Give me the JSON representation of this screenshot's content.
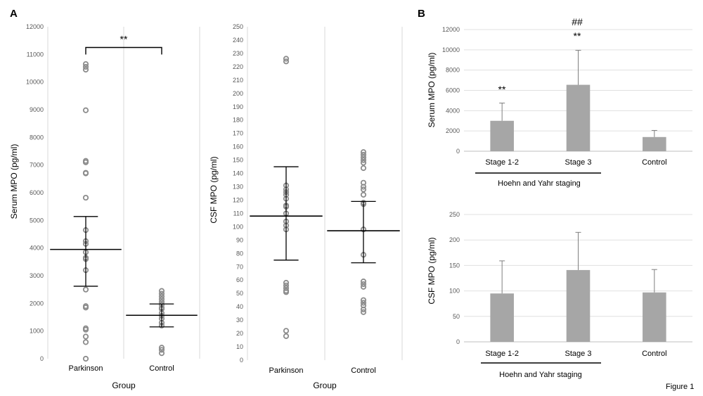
{
  "panel_labels": [
    "A",
    "B"
  ],
  "figure_caption": "Figure 1",
  "chart_data": [
    {
      "id": "serum-scatter",
      "type": "scatter",
      "ylabel": "Serum MPO (pg/ml)",
      "xlabel": "Group",
      "categories": [
        "Parkinson",
        "Control"
      ],
      "ylim": [
        0,
        12000
      ],
      "yticks": [
        0,
        1000,
        2000,
        3000,
        4000,
        5000,
        6000,
        7000,
        8000,
        9000,
        10000,
        11000,
        12000
      ],
      "grid": "vertical",
      "series": [
        {
          "category": "Parkinson",
          "values": [
            10650,
            10550,
            10450,
            8980,
            7150,
            7100,
            6720,
            6700,
            5820,
            4650,
            4250,
            4150,
            3850,
            3650,
            3600,
            3200,
            2500,
            1900,
            1850,
            1100,
            1050,
            800,
            600,
            0
          ],
          "mean": 3950,
          "sd_low": 2620,
          "sd_high": 5140
        },
        {
          "category": "Control",
          "values": [
            2450,
            2350,
            2250,
            2150,
            2050,
            1950,
            1850,
            1800,
            1650,
            1550,
            1450,
            1300,
            1200,
            400,
            320,
            200
          ],
          "mean": 1570,
          "sd_low": 1150,
          "sd_high": 1980
        }
      ],
      "annotation": {
        "text": "**",
        "between": [
          "Parkinson",
          "Control"
        ],
        "y": 11250
      }
    },
    {
      "id": "csf-scatter",
      "type": "scatter",
      "ylabel": "CSF MPO (pg/ml)",
      "xlabel": "Group",
      "categories": [
        "Parkinson",
        "Control"
      ],
      "ylim": [
        0,
        250
      ],
      "yticks": [
        0,
        10,
        20,
        30,
        40,
        50,
        60,
        70,
        80,
        90,
        100,
        110,
        120,
        130,
        140,
        150,
        160,
        170,
        180,
        190,
        200,
        210,
        220,
        230,
        240,
        250
      ],
      "grid": "vertical",
      "series": [
        {
          "category": "Parkinson",
          "values": [
            226,
            224,
            131,
            128,
            126,
            124,
            121,
            116,
            115,
            110,
            104,
            101,
            98,
            58,
            56,
            54,
            52,
            51,
            22,
            18
          ],
          "mean": 108,
          "sd_low": 75,
          "sd_high": 145
        },
        {
          "category": "Control",
          "values": [
            156,
            154,
            152,
            150,
            148,
            144,
            133,
            130,
            128,
            124,
            118,
            117,
            98,
            79,
            59,
            57,
            55,
            45,
            43,
            41,
            38,
            36
          ],
          "mean": 97,
          "sd_low": 73,
          "sd_high": 119
        }
      ]
    },
    {
      "id": "serum-bar",
      "type": "bar",
      "ylabel": "Serum MPO (pg/ml)",
      "categories": [
        "Stage 1-2",
        "Stage 3",
        "Control"
      ],
      "values": [
        3000,
        6550,
        1400
      ],
      "error_upper": [
        4750,
        9950,
        2050
      ],
      "ylim": [
        0,
        12000
      ],
      "yticks": [
        0,
        2000,
        4000,
        6000,
        8000,
        10000,
        12000
      ],
      "grid": "horizontal",
      "group_label": "Hoehn and Yahr staging",
      "annotations": [
        {
          "category": "Stage 1-2",
          "text": "**"
        },
        {
          "category": "Stage 3",
          "text": "**"
        },
        {
          "category": "Stage 3",
          "text": "##"
        }
      ]
    },
    {
      "id": "csf-bar",
      "type": "bar",
      "ylabel": "CSF MPO (pg/ml)",
      "categories": [
        "Stage 1-2",
        "Stage 3",
        "Control"
      ],
      "values": [
        95,
        141,
        97
      ],
      "error_upper": [
        159,
        215,
        142
      ],
      "ylim": [
        0,
        250
      ],
      "yticks": [
        0,
        50,
        100,
        150,
        200,
        250
      ],
      "grid": "horizontal",
      "group_label": "Hoehn and Yahr staging"
    }
  ]
}
